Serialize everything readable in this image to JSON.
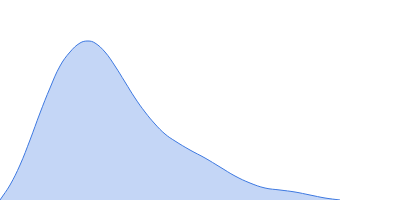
{
  "chart_data": {
    "type": "area",
    "x": [
      0,
      10,
      20,
      30,
      40,
      50,
      60,
      70,
      80,
      88,
      95,
      105,
      115,
      125,
      135,
      145,
      155,
      165,
      175,
      190,
      205,
      220,
      235,
      250,
      265,
      280,
      295,
      310,
      325,
      340
    ],
    "values": [
      0,
      15,
      35,
      60,
      87,
      112,
      134,
      148,
      157,
      159,
      157,
      148,
      134,
      118,
      102,
      88,
      76,
      66,
      59,
      50,
      42,
      33,
      24,
      17,
      12,
      10,
      8,
      5,
      2,
      0
    ],
    "color": "#3d78e0",
    "xlim": [
      0,
      400
    ],
    "ylim": [
      0,
      200
    ],
    "grid": false,
    "tick_labels": false
  }
}
